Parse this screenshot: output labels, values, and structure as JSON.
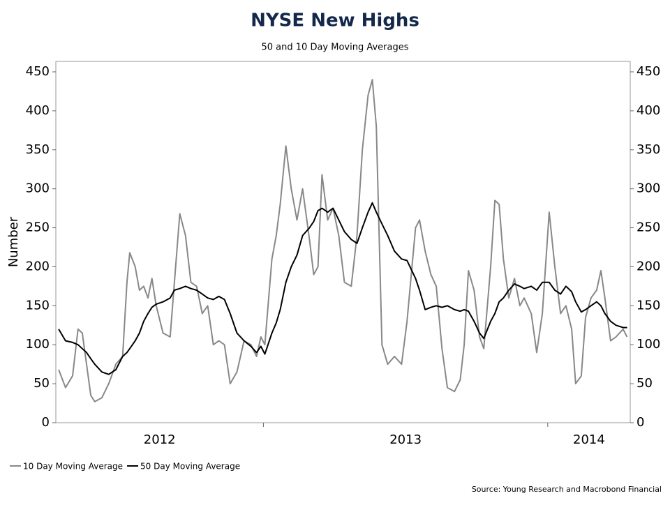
{
  "chart_data": {
    "type": "line",
    "title": "NYSE New Highs",
    "subtitle": "50 and 10 Day Moving Averages",
    "ylabel": "Number",
    "source": "Source: Young Research and Macrobond Financial",
    "x": [
      2012.28,
      2012.304,
      2012.329,
      2012.348,
      2012.363,
      2012.378,
      2012.393,
      2012.407,
      2012.432,
      2012.456,
      2012.481,
      2012.505,
      2012.52,
      2012.53,
      2012.549,
      2012.564,
      2012.579,
      2012.594,
      2012.608,
      2012.623,
      2012.647,
      2012.672,
      2012.687,
      2012.706,
      2012.726,
      2012.745,
      2012.765,
      2012.785,
      2012.804,
      2012.824,
      2012.843,
      2012.863,
      2012.883,
      2012.907,
      2012.932,
      2012.956,
      2012.976,
      2012.991,
      2013.005,
      2013.03,
      2013.045,
      2013.059,
      2013.079,
      2013.098,
      2013.118,
      2013.138,
      2013.162,
      2013.177,
      2013.192,
      2013.206,
      2013.226,
      2013.245,
      2013.265,
      2013.285,
      2013.309,
      2013.329,
      2013.348,
      2013.368,
      2013.383,
      2013.397,
      2013.417,
      2013.437,
      2013.461,
      2013.486,
      2013.505,
      2013.535,
      2013.549,
      2013.569,
      2013.589,
      2013.608,
      2013.628,
      2013.647,
      2013.672,
      2013.692,
      2013.706,
      2013.721,
      2013.741,
      2013.76,
      2013.775,
      2013.799,
      2013.814,
      2013.829,
      2013.844,
      2013.863,
      2013.883,
      2013.902,
      2013.917,
      2013.942,
      2013.961,
      2013.981,
      2014.005,
      2014.025,
      2014.045,
      2014.064,
      2014.084,
      2014.098,
      2014.118,
      2014.133,
      2014.152,
      2014.172,
      2014.187,
      2014.201,
      2014.221,
      2014.24,
      2014.265,
      2014.279
    ],
    "series": [
      {
        "name": "10 Day Moving Average",
        "color": "#888888",
        "values": [
          68,
          45,
          60,
          120,
          115,
          75,
          35,
          27,
          32,
          50,
          75,
          85,
          180,
          218,
          200,
          170,
          175,
          160,
          185,
          150,
          115,
          110,
          180,
          268,
          240,
          180,
          175,
          140,
          150,
          100,
          105,
          100,
          50,
          65,
          105,
          100,
          85,
          110,
          100,
          210,
          240,
          280,
          355,
          300,
          260,
          300,
          235,
          190,
          200,
          318,
          260,
          275,
          240,
          180,
          175,
          240,
          350,
          420,
          440,
          380,
          100,
          75,
          85,
          75,
          130,
          250,
          260,
          220,
          190,
          175,
          95,
          45,
          40,
          55,
          100,
          195,
          170,
          110,
          95,
          200,
          285,
          280,
          210,
          160,
          185,
          150,
          160,
          140,
          90,
          140,
          270,
          200,
          140,
          150,
          120,
          50,
          60,
          135,
          160,
          170,
          195,
          160,
          105,
          110,
          120,
          110
        ]
      },
      {
        "name": "50 Day Moving Average",
        "color": "#000000",
        "values": [
          120,
          105,
          103,
          100,
          95,
          90,
          82,
          75,
          65,
          62,
          68,
          85,
          90,
          95,
          105,
          115,
          130,
          140,
          148,
          152,
          155,
          160,
          170,
          172,
          175,
          172,
          170,
          165,
          160,
          158,
          162,
          158,
          140,
          115,
          105,
          98,
          90,
          98,
          88,
          115,
          128,
          145,
          180,
          200,
          215,
          240,
          250,
          258,
          272,
          275,
          270,
          275,
          260,
          245,
          235,
          230,
          250,
          270,
          282,
          270,
          255,
          240,
          220,
          210,
          208,
          185,
          170,
          145,
          148,
          150,
          148,
          150,
          145,
          143,
          145,
          143,
          130,
          115,
          108,
          130,
          140,
          155,
          160,
          170,
          178,
          175,
          172,
          175,
          170,
          180,
          180,
          170,
          165,
          175,
          168,
          155,
          142,
          145,
          150,
          155,
          150,
          140,
          130,
          125,
          122,
          122
        ]
      }
    ],
    "xlim": [
      2012.27,
      2014.29
    ],
    "xticks": [
      {
        "value": 2012,
        "label": "2012"
      },
      {
        "value": 2013,
        "label": "2013"
      },
      {
        "value": 2014,
        "label": "2014"
      }
    ],
    "ylim": [
      0,
      450
    ],
    "yticks": [
      0,
      50,
      100,
      150,
      200,
      250,
      300,
      350,
      400,
      450
    ],
    "y2lim": [
      0,
      450
    ],
    "y2ticks": [
      0,
      50,
      100,
      150,
      200,
      250,
      300,
      350,
      400,
      450
    ],
    "grid": false,
    "legend": "bottom-left"
  }
}
